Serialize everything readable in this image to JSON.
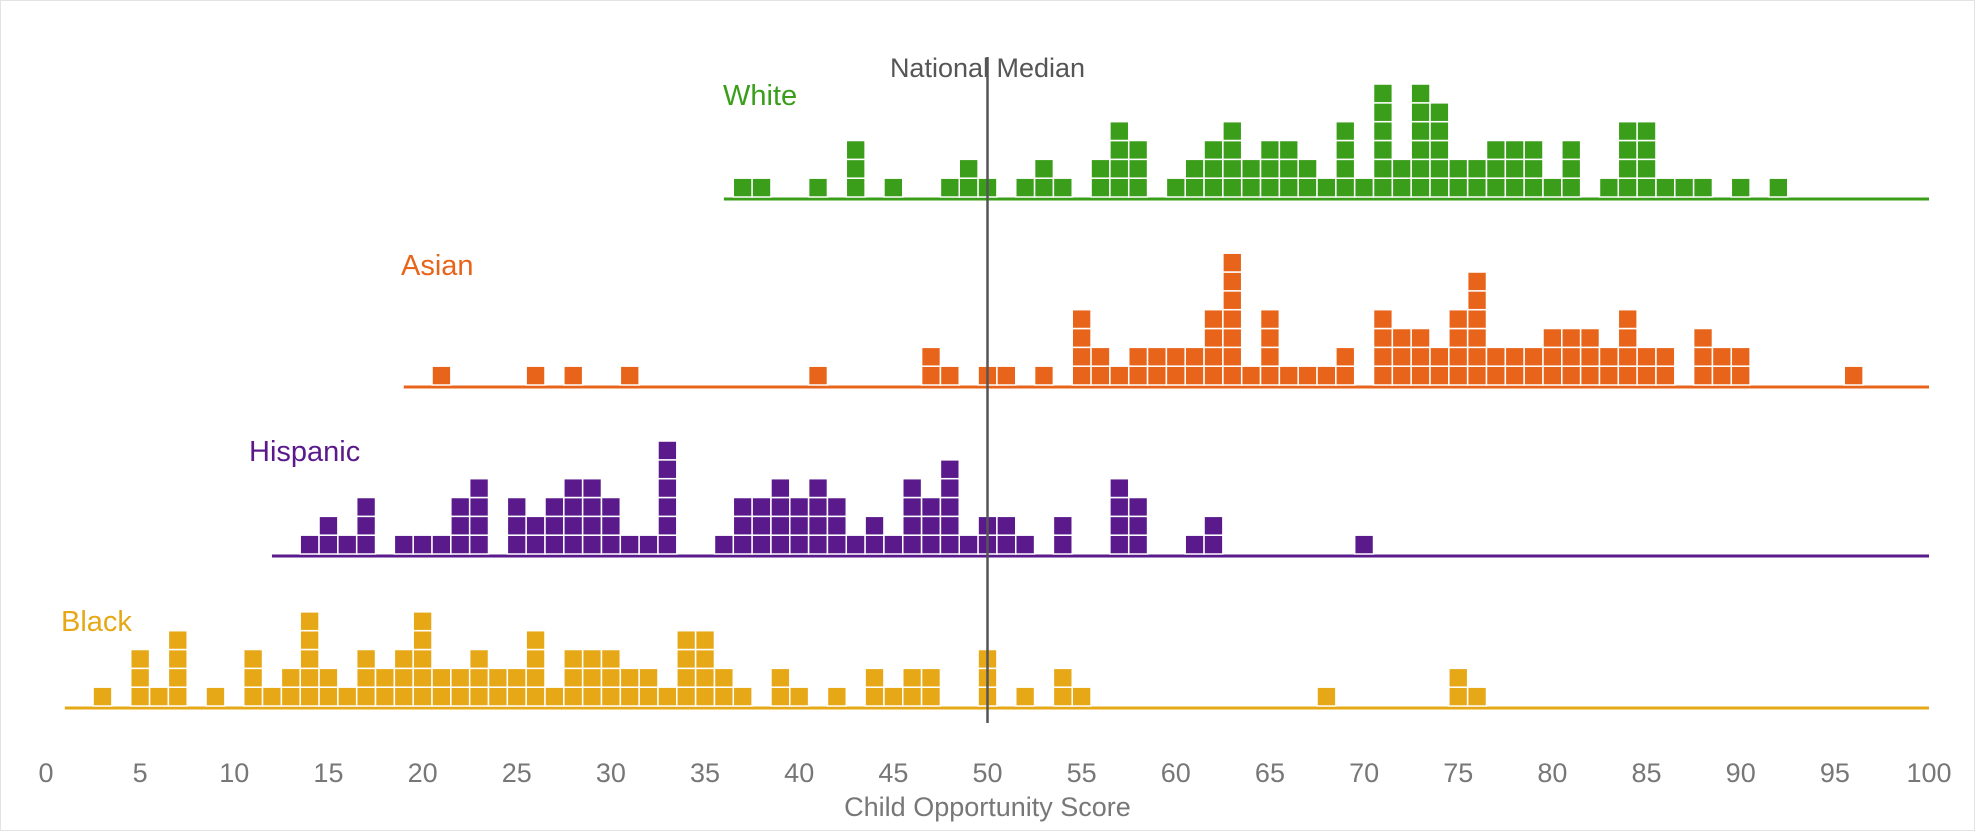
{
  "chart_data": {
    "type": "dot-histogram",
    "title": "",
    "xlabel": "Child Opportunity Score",
    "ylabel": "",
    "xlim": [
      0,
      100
    ],
    "xticks": [
      0,
      5,
      10,
      15,
      20,
      25,
      30,
      35,
      40,
      45,
      50,
      55,
      60,
      65,
      70,
      75,
      80,
      85,
      90,
      95,
      100
    ],
    "grid": false,
    "legend": "none",
    "reference_line": {
      "label": "National Median",
      "x": 50
    },
    "series": [
      {
        "name": "White",
        "color": "#3a9e1a",
        "baseline_range": [
          36,
          100
        ],
        "counts": [
          [
            37,
            1
          ],
          [
            38,
            1
          ],
          [
            41,
            1
          ],
          [
            43,
            3
          ],
          [
            45,
            1
          ],
          [
            48,
            1
          ],
          [
            49,
            2
          ],
          [
            50,
            1
          ],
          [
            52,
            1
          ],
          [
            53,
            2
          ],
          [
            54,
            1
          ],
          [
            56,
            2
          ],
          [
            57,
            4
          ],
          [
            58,
            3
          ],
          [
            60,
            1
          ],
          [
            61,
            2
          ],
          [
            62,
            3
          ],
          [
            63,
            4
          ],
          [
            64,
            2
          ],
          [
            65,
            3
          ],
          [
            66,
            3
          ],
          [
            67,
            2
          ],
          [
            68,
            1
          ],
          [
            69,
            4
          ],
          [
            70,
            1
          ],
          [
            71,
            6
          ],
          [
            72,
            2
          ],
          [
            73,
            6
          ],
          [
            74,
            5
          ],
          [
            75,
            2
          ],
          [
            76,
            2
          ],
          [
            77,
            3
          ],
          [
            78,
            3
          ],
          [
            79,
            3
          ],
          [
            80,
            1
          ],
          [
            81,
            3
          ],
          [
            83,
            1
          ],
          [
            84,
            4
          ],
          [
            85,
            4
          ],
          [
            86,
            1
          ],
          [
            87,
            1
          ],
          [
            88,
            1
          ],
          [
            90,
            1
          ],
          [
            92,
            1
          ]
        ]
      },
      {
        "name": "Asian",
        "color": "#e8641b",
        "baseline_range": [
          19,
          100
        ],
        "counts": [
          [
            21,
            1
          ],
          [
            26,
            1
          ],
          [
            28,
            1
          ],
          [
            31,
            1
          ],
          [
            41,
            1
          ],
          [
            47,
            2
          ],
          [
            48,
            1
          ],
          [
            50,
            1
          ],
          [
            51,
            1
          ],
          [
            53,
            1
          ],
          [
            55,
            4
          ],
          [
            56,
            2
          ],
          [
            57,
            1
          ],
          [
            58,
            2
          ],
          [
            59,
            2
          ],
          [
            60,
            2
          ],
          [
            61,
            2
          ],
          [
            62,
            4
          ],
          [
            63,
            7
          ],
          [
            64,
            1
          ],
          [
            65,
            4
          ],
          [
            66,
            1
          ],
          [
            67,
            1
          ],
          [
            68,
            1
          ],
          [
            69,
            2
          ],
          [
            71,
            4
          ],
          [
            72,
            3
          ],
          [
            73,
            3
          ],
          [
            74,
            2
          ],
          [
            75,
            4
          ],
          [
            76,
            6
          ],
          [
            77,
            2
          ],
          [
            78,
            2
          ],
          [
            79,
            2
          ],
          [
            80,
            3
          ],
          [
            81,
            3
          ],
          [
            82,
            3
          ],
          [
            83,
            2
          ],
          [
            84,
            4
          ],
          [
            85,
            2
          ],
          [
            86,
            2
          ],
          [
            88,
            3
          ],
          [
            89,
            2
          ],
          [
            90,
            2
          ],
          [
            96,
            1
          ]
        ]
      },
      {
        "name": "Hispanic",
        "color": "#5a1a8c",
        "baseline_range": [
          12,
          100
        ],
        "counts": [
          [
            14,
            1
          ],
          [
            15,
            2
          ],
          [
            16,
            1
          ],
          [
            17,
            3
          ],
          [
            19,
            1
          ],
          [
            20,
            1
          ],
          [
            21,
            1
          ],
          [
            22,
            3
          ],
          [
            23,
            4
          ],
          [
            25,
            3
          ],
          [
            26,
            2
          ],
          [
            27,
            3
          ],
          [
            28,
            4
          ],
          [
            29,
            4
          ],
          [
            30,
            3
          ],
          [
            31,
            1
          ],
          [
            32,
            1
          ],
          [
            33,
            6
          ],
          [
            36,
            1
          ],
          [
            37,
            3
          ],
          [
            38,
            3
          ],
          [
            39,
            4
          ],
          [
            40,
            3
          ],
          [
            41,
            4
          ],
          [
            42,
            3
          ],
          [
            43,
            1
          ],
          [
            44,
            2
          ],
          [
            45,
            1
          ],
          [
            46,
            4
          ],
          [
            47,
            3
          ],
          [
            48,
            5
          ],
          [
            49,
            1
          ],
          [
            50,
            2
          ],
          [
            51,
            2
          ],
          [
            52,
            1
          ],
          [
            54,
            2
          ],
          [
            57,
            4
          ],
          [
            58,
            3
          ],
          [
            61,
            1
          ],
          [
            62,
            2
          ],
          [
            70,
            1
          ]
        ]
      },
      {
        "name": "Black",
        "color": "#e6a817",
        "baseline_range": [
          1,
          100
        ],
        "counts": [
          [
            3,
            1
          ],
          [
            5,
            3
          ],
          [
            6,
            1
          ],
          [
            7,
            4
          ],
          [
            9,
            1
          ],
          [
            11,
            3
          ],
          [
            12,
            1
          ],
          [
            13,
            2
          ],
          [
            14,
            5
          ],
          [
            15,
            2
          ],
          [
            16,
            1
          ],
          [
            17,
            3
          ],
          [
            18,
            2
          ],
          [
            19,
            3
          ],
          [
            20,
            5
          ],
          [
            21,
            2
          ],
          [
            22,
            2
          ],
          [
            23,
            3
          ],
          [
            24,
            2
          ],
          [
            25,
            2
          ],
          [
            26,
            4
          ],
          [
            27,
            1
          ],
          [
            28,
            3
          ],
          [
            29,
            3
          ],
          [
            30,
            3
          ],
          [
            31,
            2
          ],
          [
            32,
            2
          ],
          [
            33,
            1
          ],
          [
            34,
            4
          ],
          [
            35,
            4
          ],
          [
            36,
            2
          ],
          [
            37,
            1
          ],
          [
            39,
            2
          ],
          [
            40,
            1
          ],
          [
            42,
            1
          ],
          [
            44,
            2
          ],
          [
            45,
            1
          ],
          [
            46,
            2
          ],
          [
            47,
            2
          ],
          [
            50,
            3
          ],
          [
            52,
            1
          ],
          [
            54,
            2
          ],
          [
            55,
            1
          ],
          [
            68,
            1
          ],
          [
            75,
            2
          ],
          [
            76,
            1
          ]
        ]
      }
    ]
  }
}
